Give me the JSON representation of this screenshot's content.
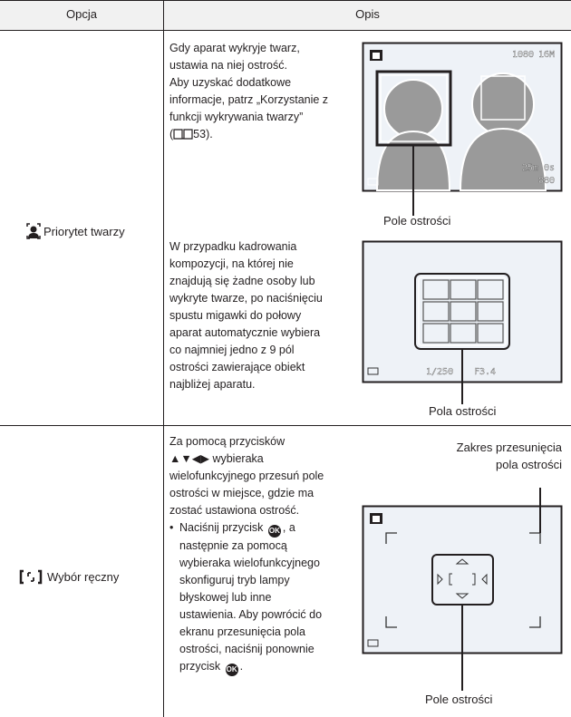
{
  "table": {
    "header": [
      "Opcja",
      "Opis"
    ],
    "rows": [
      {
        "option": "Priorytet twarzy",
        "paragraph1": [
          "Gdy aparat wykryje twarz,",
          "ustawia na niej ostrość.",
          "Aby uzyskać dodatkowe",
          "informacje, patrz „Korzystanie z",
          "funkcji wykrywania twarzy”"
        ],
        "reference": {
          "open": "(",
          "page": "53)."
        },
        "screen1": {
          "format": "1080",
          "size": "16M",
          "time": "25m 0s",
          "shots": "880",
          "caption": "Pole ostrości"
        },
        "paragraph2": [
          "W przypadku kadrowania",
          "kompozycji, na której nie",
          "znajdują się żadne osoby lub",
          "wykryte twarze, po naciśnięciu",
          "spustu migawki do połowy",
          "aparat automatycznie wybiera",
          "co najmniej jedno z 9 pól",
          "ostrości zawierające obiekt",
          "najbliżej aparatu."
        ],
        "screen2": {
          "shutter": "1/250",
          "aperture": "F3.4",
          "caption": "Pola ostrości"
        }
      },
      {
        "option": "Wybór ręczny",
        "paragraph1": [
          "Za pomocą przycisków",
          "▲▼◀▶ wybieraka",
          "wielofunkcyjnego przesuń pole",
          "ostrości w miejsce, gdzie ma",
          "zostać ustawiona ostrość."
        ],
        "bullet": [
          [
            "Naciśnij przycisk",
            ", a"
          ],
          "następnie za pomocą",
          "wybieraka wielofunkcyjnego",
          "skonfiguruj tryb lampy",
          "błyskowej lub inne",
          "ustawienia. Aby powrócić do",
          "ekranu przesunięcia pola",
          "ostrości, naciśnij ponownie",
          [
            "przycisk",
            "."
          ]
        ],
        "ok_icon": "OK",
        "screen3": {
          "range_caption": [
            "Zakres przesunięcia",
            "pola ostrości"
          ],
          "caption": "Pole ostrości"
        }
      }
    ]
  }
}
